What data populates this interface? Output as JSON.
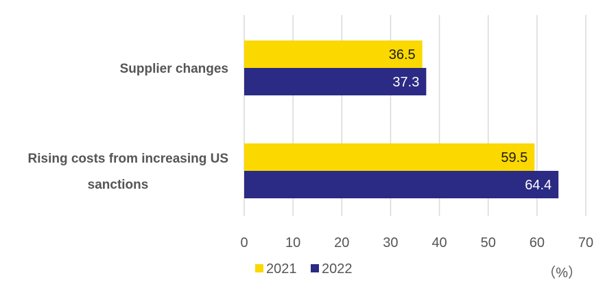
{
  "chart_data": {
    "type": "bar",
    "orientation": "horizontal",
    "categories": [
      "Supplier changes",
      "Rising costs from increasing US sanctions"
    ],
    "category_lines": [
      [
        "Supplier changes"
      ],
      [
        "Rising costs from increasing US",
        "sanctions"
      ]
    ],
    "series": [
      {
        "name": "2021",
        "values": [
          36.5,
          59.5
        ],
        "color": "#FAD800",
        "label_color": "#1a1a1a"
      },
      {
        "name": "2022",
        "values": [
          37.3,
          64.4
        ],
        "color": "#2B2A84",
        "label_color": "#ffffff"
      }
    ],
    "xlim": [
      0,
      70
    ],
    "xticks": [
      0,
      10,
      20,
      30,
      40,
      50,
      60,
      70
    ],
    "unit_label": "（%）",
    "grid": true,
    "legend_position": "bottom",
    "gridline_color": "#D9D9D9"
  }
}
